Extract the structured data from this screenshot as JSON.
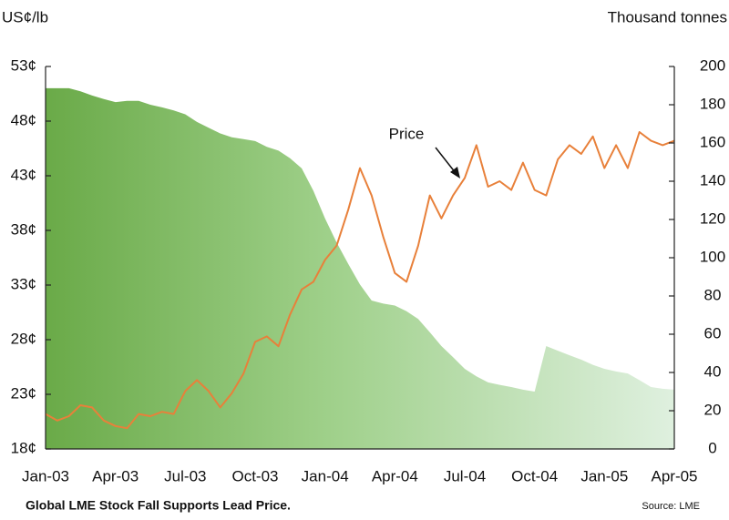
{
  "chart_data": {
    "type": "line",
    "title": "Global LME Stock Fall Supports Lead Price.",
    "source": "Source: LME",
    "ylabel": "US¢/lb",
    "y2label": "Thousand tonnes",
    "categories": [
      "Jan-03",
      null,
      null,
      null,
      null,
      null,
      "Apr-03",
      null,
      null,
      null,
      null,
      null,
      "Jul-03",
      null,
      null,
      null,
      null,
      null,
      "Oct-03",
      null,
      null,
      null,
      null,
      null,
      "Jan-04",
      null,
      null,
      null,
      null,
      null,
      "Apr-04",
      null,
      null,
      null,
      null,
      null,
      "Jul-04",
      null,
      null,
      null,
      null,
      null,
      "Oct-04",
      null,
      null,
      null,
      null,
      null,
      "Jan-05",
      null,
      null,
      null,
      null,
      null,
      "Apr-05"
    ],
    "ylim": [
      18,
      53
    ],
    "yticks": [
      {
        "value": 18,
        "label": "18¢"
      },
      {
        "value": 23,
        "label": "23¢"
      },
      {
        "value": 28,
        "label": "28¢"
      },
      {
        "value": 33,
        "label": "33¢"
      },
      {
        "value": 38,
        "label": "38¢"
      },
      {
        "value": 43,
        "label": "43¢"
      },
      {
        "value": 48,
        "label": "48¢"
      },
      {
        "value": 53,
        "label": "53¢"
      }
    ],
    "y2lim": [
      0,
      200
    ],
    "y2ticks": [
      0,
      20,
      40,
      60,
      80,
      100,
      120,
      140,
      160,
      180,
      200
    ],
    "series": [
      {
        "type": "area",
        "axis": "y2",
        "color": "#6aaa48",
        "values": [
          188.6,
          188.6,
          188.6,
          187,
          184.8,
          183,
          181.4,
          182,
          182,
          180,
          178.6,
          177,
          175,
          171,
          168,
          165,
          163,
          162,
          161,
          158,
          156,
          152,
          146.7,
          135,
          120.5,
          108,
          96.7,
          86,
          77.6,
          76,
          75,
          72,
          68,
          61,
          53.8,
          48,
          41.9,
          38,
          34.8,
          33.5,
          32.4,
          31,
          30,
          53.8,
          51.4,
          49,
          46.7,
          44,
          41.9,
          40.5,
          39.5,
          36,
          32.4,
          31.5,
          31
        ]
      },
      {
        "name": "Price",
        "type": "line",
        "axis": "y",
        "color": "#e8803a",
        "values": [
          21.2,
          20.6,
          21,
          22,
          21.8,
          20.6,
          20.1,
          19.9,
          21.2,
          21,
          21.4,
          21.2,
          23.3,
          24.3,
          23.3,
          21.8,
          23.1,
          24.9,
          27.8,
          28.3,
          27.4,
          30.3,
          32.6,
          33.3,
          35.3,
          36.6,
          39.9,
          43.7,
          41.2,
          37.4,
          34.1,
          33.3,
          36.6,
          41.2,
          39.1,
          41.2,
          42.8,
          45.8,
          42,
          42.5,
          41.7,
          44.2,
          41.7,
          41.2,
          44.5,
          45.8,
          45,
          46.6,
          43.7,
          45.8,
          43.7,
          47,
          46.2,
          45.8,
          46.2
        ]
      }
    ]
  }
}
